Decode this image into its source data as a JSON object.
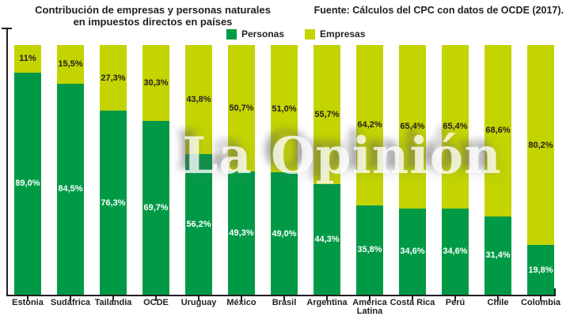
{
  "title": {
    "line1": "Contribución de empresas y personas naturales",
    "line2": "en impuestos directos en países"
  },
  "source": "Fuente: Cálculos del CPC con datos de OCDE (2017).",
  "watermark": "La Opinión",
  "colors": {
    "personas": "#009a46",
    "empresas": "#c3d400",
    "axis": "#231f20",
    "label_dark": "#231f20",
    "label_light": "#ffffff"
  },
  "legend": {
    "items": [
      {
        "label": "Personas",
        "color": "#009a46"
      },
      {
        "label": "Empresas",
        "color": "#c3d400"
      }
    ]
  },
  "chart_data": {
    "type": "bar",
    "stacked": true,
    "orientation": "vertical",
    "grid": false,
    "legend_position": "top",
    "ylim": [
      0,
      100
    ],
    "unit": "%",
    "categories": [
      "Estonia",
      "Sudáfrica",
      "Tailandia",
      "OCDE",
      "Uruguay",
      "México",
      "Brasil",
      "Argentina",
      "América Latina",
      "Costa Rica",
      "Perú",
      "Chile",
      "Colombia"
    ],
    "series": [
      {
        "name": "Personas",
        "color": "#009a46",
        "values": [
          89.0,
          84.5,
          76.3,
          69.7,
          56.2,
          49.3,
          49.0,
          44.3,
          35.8,
          34.6,
          34.6,
          31.4,
          19.8
        ],
        "labels": [
          "89,0%",
          "84,5%",
          "76,3%",
          "69,7%",
          "56,2%",
          "49,3%",
          "49,0%",
          "44,3%",
          "35,8%",
          "34,6%",
          "34,6%",
          "31,4%",
          "19,8%"
        ]
      },
      {
        "name": "Empresas",
        "color": "#c3d400",
        "values": [
          11.0,
          15.5,
          27.3,
          30.3,
          43.8,
          50.7,
          51.0,
          55.7,
          64.2,
          65.4,
          65.4,
          68.6,
          80.2
        ],
        "labels": [
          "11%",
          "15,5%",
          "27,3%",
          "30,3%",
          "43,8%",
          "50,7%",
          "51,0%",
          "55,7%",
          "64,2%",
          "65,4%",
          "65,4%",
          "68,6%",
          "80,2%"
        ]
      }
    ]
  }
}
